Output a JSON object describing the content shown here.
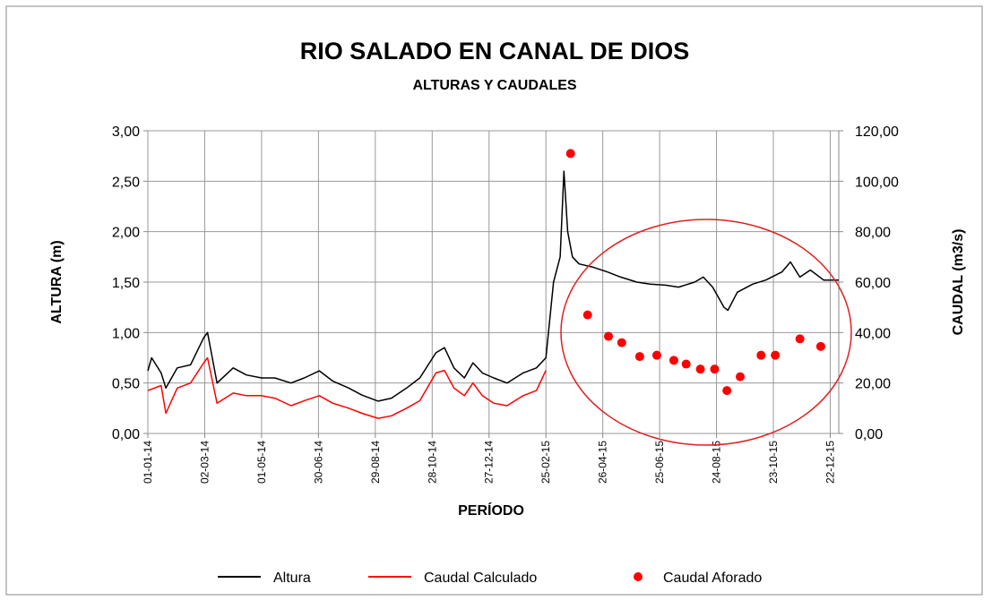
{
  "chart_data": {
    "type": "line",
    "title": "RIO SALADO EN CANAL DE DIOS",
    "subtitle": "ALTURAS Y CAUDALES",
    "xlabel": "PERÍODO",
    "ylabel": "ALTURA (m)",
    "y2label": "CAUDAL (m3/s)",
    "xlim": [
      "2014-01-01",
      "2015-12-31"
    ],
    "xticks": [
      {
        "value": "2014-01-01",
        "label": "01-01-14"
      },
      {
        "value": "2014-03-02",
        "label": "02-03-14"
      },
      {
        "value": "2014-05-01",
        "label": "01-05-14"
      },
      {
        "value": "2014-06-30",
        "label": "30-06-14"
      },
      {
        "value": "2014-08-29",
        "label": "29-08-14"
      },
      {
        "value": "2014-10-28",
        "label": "28-10-14"
      },
      {
        "value": "2014-12-27",
        "label": "27-12-14"
      },
      {
        "value": "2015-02-25",
        "label": "25-02-15"
      },
      {
        "value": "2015-04-26",
        "label": "26-04-15"
      },
      {
        "value": "2015-06-25",
        "label": "25-06-15"
      },
      {
        "value": "2015-08-24",
        "label": "24-08-15"
      },
      {
        "value": "2015-10-23",
        "label": "23-10-15"
      },
      {
        "value": "2015-12-22",
        "label": "22-12-15"
      }
    ],
    "ylim": [
      0,
      3
    ],
    "yticks": [
      {
        "value": 0,
        "label": "0,00"
      },
      {
        "value": 0.5,
        "label": "0,50"
      },
      {
        "value": 1,
        "label": "1,00"
      },
      {
        "value": 1.5,
        "label": "1,50"
      },
      {
        "value": 2,
        "label": "2,00"
      },
      {
        "value": 2.5,
        "label": "2,50"
      },
      {
        "value": 3,
        "label": "3,00"
      }
    ],
    "y2lim": [
      0,
      120
    ],
    "y2ticks": [
      {
        "value": 0,
        "label": "0,00"
      },
      {
        "value": 20,
        "label": "20,00"
      },
      {
        "value": 40,
        "label": "40,00"
      },
      {
        "value": 60,
        "label": "60,00"
      },
      {
        "value": 80,
        "label": "80,00"
      },
      {
        "value": 100,
        "label": "100,00"
      },
      {
        "value": 120,
        "label": "120,00"
      }
    ],
    "grid": true,
    "legend": "bottom",
    "series": [
      {
        "name": "Altura",
        "color": "#000000",
        "type": "line",
        "x": [
          "2014-01-01",
          "2014-01-05",
          "2014-01-15",
          "2014-01-20",
          "2014-02-01",
          "2014-02-15",
          "2014-03-01",
          "2014-03-05",
          "2014-03-10",
          "2014-03-15",
          "2014-04-01",
          "2014-04-15",
          "2014-05-01",
          "2014-05-15",
          "2014-06-01",
          "2014-06-15",
          "2014-07-01",
          "2014-07-15",
          "2014-08-01",
          "2014-08-15",
          "2014-09-01",
          "2014-09-15",
          "2014-10-01",
          "2014-10-15",
          "2014-11-01",
          "2014-11-10",
          "2014-11-20",
          "2014-12-01",
          "2014-12-10",
          "2014-12-20",
          "2015-01-01",
          "2015-01-15",
          "2015-02-01",
          "2015-02-15",
          "2015-02-25",
          "2015-03-05",
          "2015-03-12",
          "2015-03-16",
          "2015-03-20",
          "2015-03-25",
          "2015-04-01",
          "2015-04-15",
          "2015-05-01",
          "2015-05-15",
          "2015-06-01",
          "2015-06-15",
          "2015-07-01",
          "2015-07-15",
          "2015-08-01",
          "2015-08-10",
          "2015-08-20",
          "2015-09-01",
          "2015-09-05",
          "2015-09-15",
          "2015-10-01",
          "2015-10-15",
          "2015-11-01",
          "2015-11-10",
          "2015-11-20",
          "2015-12-01",
          "2015-12-15",
          "2015-12-31"
        ],
        "values": [
          0.62,
          0.75,
          0.6,
          0.45,
          0.65,
          0.68,
          0.95,
          1.0,
          0.75,
          0.5,
          0.65,
          0.58,
          0.55,
          0.55,
          0.5,
          0.55,
          0.62,
          0.52,
          0.45,
          0.38,
          0.32,
          0.35,
          0.45,
          0.55,
          0.8,
          0.85,
          0.65,
          0.55,
          0.7,
          0.6,
          0.55,
          0.5,
          0.6,
          0.65,
          0.75,
          1.5,
          1.75,
          2.6,
          2.0,
          1.75,
          1.68,
          1.65,
          1.6,
          1.55,
          1.5,
          1.48,
          1.47,
          1.45,
          1.5,
          1.55,
          1.45,
          1.25,
          1.22,
          1.4,
          1.48,
          1.52,
          1.6,
          1.7,
          1.55,
          1.62,
          1.52,
          1.52
        ]
      },
      {
        "name": "Caudal Calculado",
        "color": "#ff0000",
        "type": "line",
        "axis": "y2",
        "x": [
          "2014-01-01",
          "2014-01-15",
          "2014-01-20",
          "2014-02-01",
          "2014-02-15",
          "2014-03-01",
          "2014-03-05",
          "2014-03-15",
          "2014-04-01",
          "2014-04-15",
          "2014-05-01",
          "2014-05-15",
          "2014-06-01",
          "2014-06-15",
          "2014-07-01",
          "2014-07-15",
          "2014-08-01",
          "2014-08-15",
          "2014-09-01",
          "2014-09-15",
          "2014-10-01",
          "2014-10-15",
          "2014-11-01",
          "2014-11-10",
          "2014-11-20",
          "2014-12-01",
          "2014-12-10",
          "2014-12-20",
          "2015-01-01",
          "2015-01-15",
          "2015-02-01",
          "2015-02-15",
          "2015-02-25"
        ],
        "values": [
          17,
          19,
          8,
          18,
          20,
          28,
          30,
          12,
          16,
          15,
          15,
          14,
          11,
          13,
          15,
          12,
          10,
          8,
          6,
          7,
          10,
          13,
          24,
          25,
          18,
          15,
          20,
          15,
          12,
          11,
          15,
          17,
          25
        ]
      },
      {
        "name": "Caudal Aforado",
        "color": "#ff0000",
        "type": "scatter",
        "axis": "y2",
        "x": [
          "2015-03-23",
          "2015-04-10",
          "2015-05-02",
          "2015-05-16",
          "2015-06-04",
          "2015-06-22",
          "2015-07-10",
          "2015-07-23",
          "2015-08-07",
          "2015-08-22",
          "2015-09-04",
          "2015-09-18",
          "2015-10-10",
          "2015-10-25",
          "2015-11-20",
          "2015-12-12"
        ],
        "values": [
          111,
          47,
          38.5,
          36,
          30.5,
          31,
          29,
          27.5,
          25.5,
          25.5,
          17,
          22.5,
          31,
          31,
          37.5,
          34.5
        ]
      }
    ]
  }
}
